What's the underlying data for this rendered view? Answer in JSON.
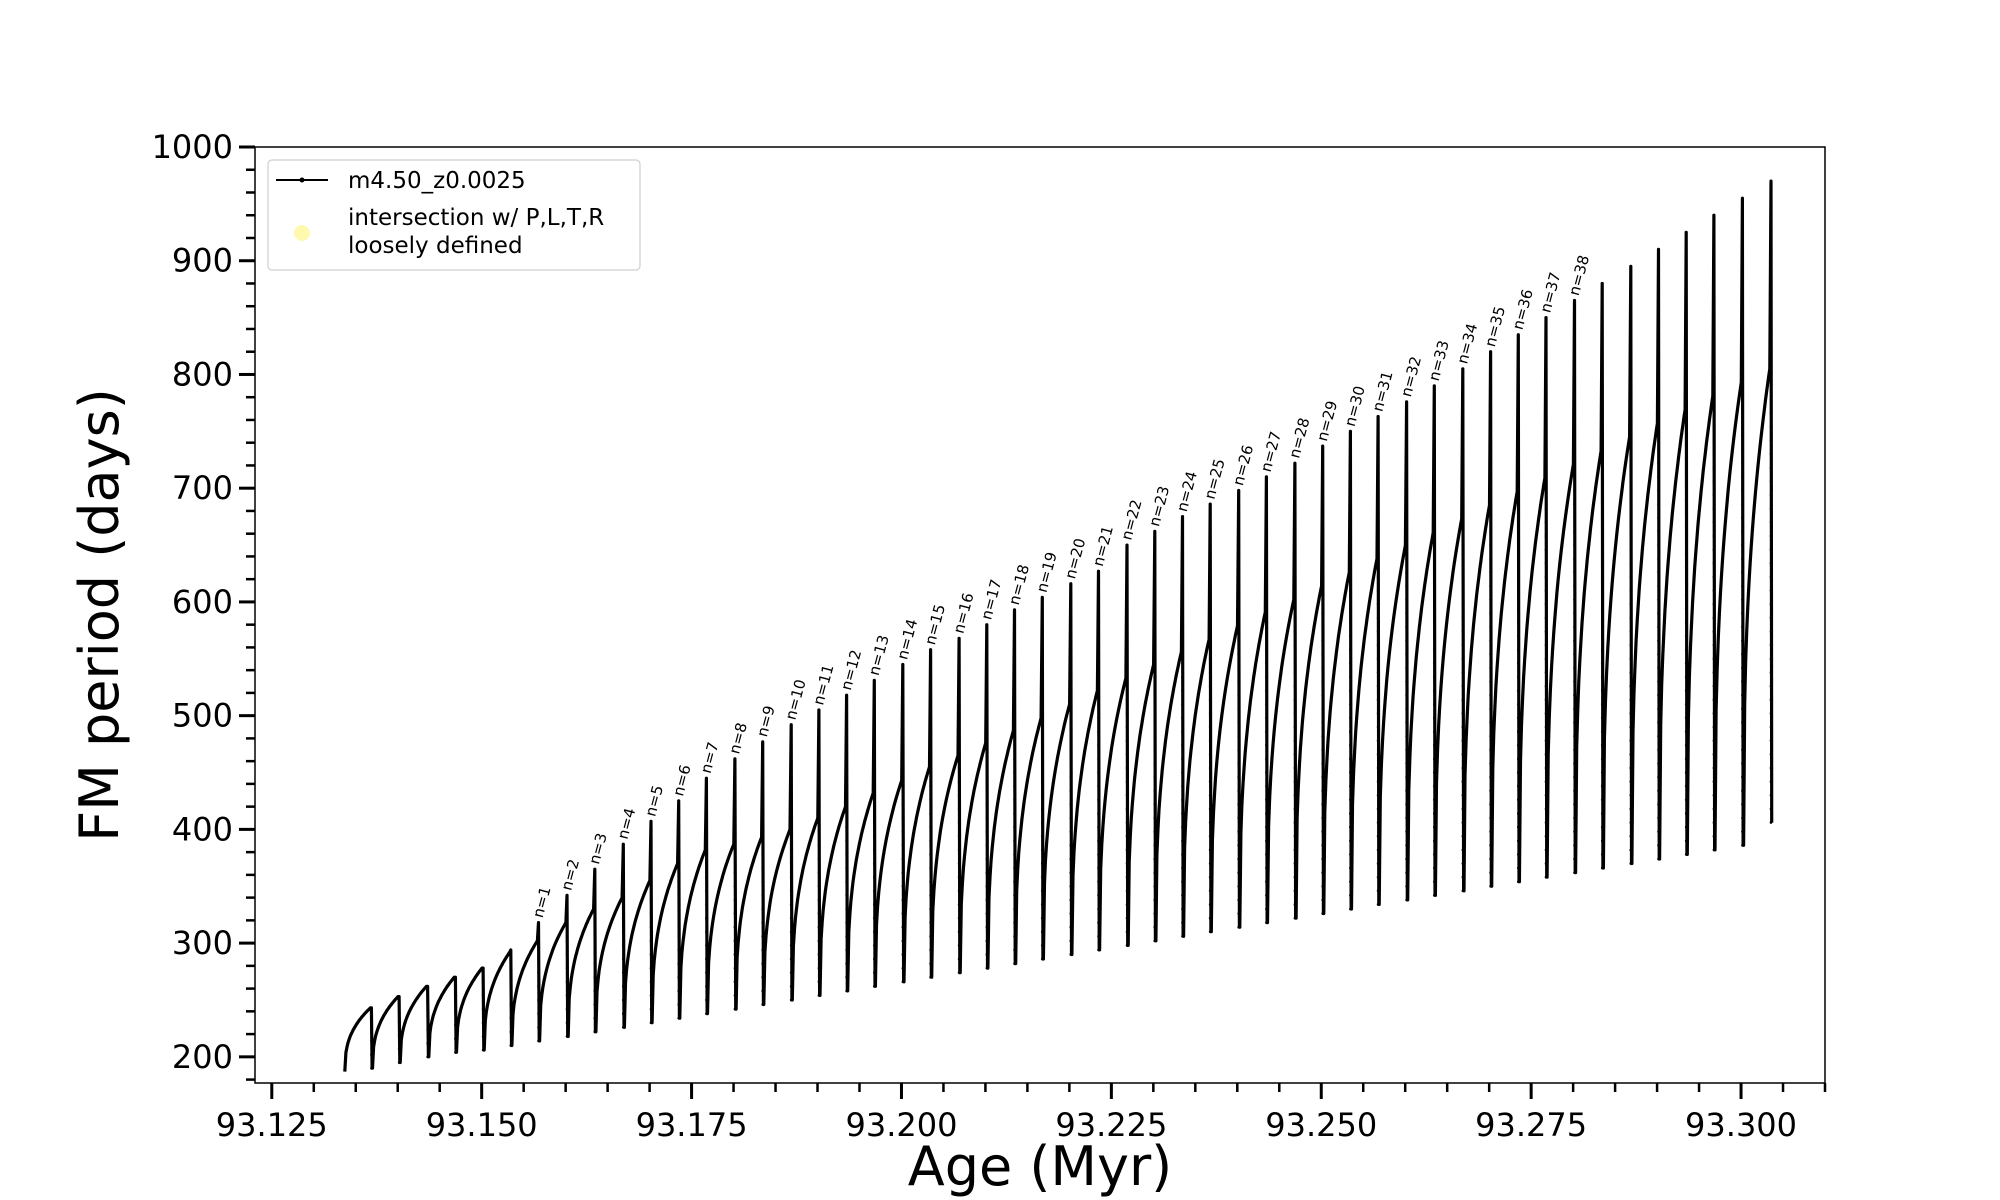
{
  "chart_data": {
    "type": "line",
    "title": "",
    "xlabel": "Age (Myr)",
    "ylabel": "FM period (days)",
    "xlim": [
      93.123,
      93.31
    ],
    "ylim": [
      177,
      1000
    ],
    "x_ticks": [
      "93.125",
      "93.150",
      "93.175",
      "93.200",
      "93.225",
      "93.250",
      "93.275",
      "93.300"
    ],
    "x_tick_values": [
      93.125,
      93.15,
      93.175,
      93.2,
      93.225,
      93.25,
      93.275,
      93.3
    ],
    "y_ticks": [
      "200",
      "300",
      "400",
      "500",
      "600",
      "700",
      "800",
      "900",
      "1000"
    ],
    "y_tick_values": [
      200,
      300,
      400,
      500,
      600,
      700,
      800,
      900,
      1000
    ],
    "grid": false,
    "legend_position": "top-left",
    "legend": [
      {
        "label": "m4.50_z0.0025",
        "marker": "line-dot",
        "color": "#000000"
      },
      {
        "label": "intersection w/ P,L,T,R",
        "label2": "loosely defined",
        "marker": "circle",
        "color": "#fff9b0"
      }
    ],
    "series": [
      {
        "name": "m4.50_z0.0025",
        "color": "#000000",
        "description_points": "sawtooth of pulses; each pulse rises from a trough to a crest, then a near-vertical spike reaches the peak; n-labels sit at the spike tops",
        "pulses": [
          {
            "n": "",
            "x": 93.1337,
            "trough": 187,
            "crest": 243,
            "peak": 210
          },
          {
            "n": "",
            "x": 93.137,
            "trough": 190,
            "crest": 253,
            "peak": 228
          },
          {
            "n": "",
            "x": 93.1403,
            "trough": 195,
            "crest": 262,
            "peak": 240
          },
          {
            "n": "",
            "x": 93.1437,
            "trough": 200,
            "crest": 270,
            "peak": 255
          },
          {
            "n": "",
            "x": 93.147,
            "trough": 204,
            "crest": 278,
            "peak": 270
          },
          {
            "n": "",
            "x": 93.1503,
            "trough": 206,
            "crest": 292,
            "peak": 294
          },
          {
            "n": "n=1",
            "x": 93.1536,
            "trough": 210,
            "crest": 302,
            "peak": 318
          },
          {
            "n": "n=2",
            "x": 93.1569,
            "trough": 214,
            "crest": 318,
            "peak": 342
          },
          {
            "n": "n=3",
            "x": 93.1603,
            "trough": 218,
            "crest": 330,
            "peak": 365
          },
          {
            "n": "n=4",
            "x": 93.1636,
            "trough": 222,
            "crest": 340,
            "peak": 387
          },
          {
            "n": "n=5",
            "x": 93.167,
            "trough": 226,
            "crest": 355,
            "peak": 407
          },
          {
            "n": "n=6",
            "x": 93.1703,
            "trough": 230,
            "crest": 370,
            "peak": 425
          },
          {
            "n": "n=7",
            "x": 93.1736,
            "trough": 234,
            "crest": 382,
            "peak": 445
          },
          {
            "n": "n=8",
            "x": 93.1769,
            "trough": 238,
            "crest": 387,
            "peak": 462
          },
          {
            "n": "n=9",
            "x": 93.1803,
            "trough": 242,
            "crest": 393,
            "peak": 477
          },
          {
            "n": "n=10",
            "x": 93.1836,
            "trough": 246,
            "crest": 400,
            "peak": 492
          },
          {
            "n": "n=11",
            "x": 93.187,
            "trough": 250,
            "crest": 410,
            "peak": 505
          },
          {
            "n": "n=12",
            "x": 93.1903,
            "trough": 254,
            "crest": 420,
            "peak": 518
          },
          {
            "n": "n=13",
            "x": 93.1936,
            "trough": 258,
            "crest": 432,
            "peak": 531
          },
          {
            "n": "n=14",
            "x": 93.1969,
            "trough": 262,
            "crest": 443,
            "peak": 545
          },
          {
            "n": "n=15",
            "x": 93.2003,
            "trough": 266,
            "crest": 455,
            "peak": 558
          },
          {
            "n": "n=16",
            "x": 93.2036,
            "trough": 270,
            "crest": 465,
            "peak": 568
          },
          {
            "n": "n=17",
            "x": 93.207,
            "trough": 274,
            "crest": 476,
            "peak": 580
          },
          {
            "n": "n=18",
            "x": 93.2103,
            "trough": 278,
            "crest": 487,
            "peak": 593
          },
          {
            "n": "n=19",
            "x": 93.2136,
            "trough": 282,
            "crest": 498,
            "peak": 604
          },
          {
            "n": "n=20",
            "x": 93.2169,
            "trough": 286,
            "crest": 510,
            "peak": 616
          },
          {
            "n": "n=21",
            "x": 93.2203,
            "trough": 290,
            "crest": 522,
            "peak": 627
          },
          {
            "n": "n=22",
            "x": 93.2236,
            "trough": 294,
            "crest": 533,
            "peak": 650
          },
          {
            "n": "n=23",
            "x": 93.227,
            "trough": 298,
            "crest": 545,
            "peak": 662
          },
          {
            "n": "n=24",
            "x": 93.2303,
            "trough": 302,
            "crest": 556,
            "peak": 675
          },
          {
            "n": "n=25",
            "x": 93.2336,
            "trough": 306,
            "crest": 567,
            "peak": 686
          },
          {
            "n": "n=26",
            "x": 93.2369,
            "trough": 310,
            "crest": 579,
            "peak": 698
          },
          {
            "n": "n=27",
            "x": 93.2403,
            "trough": 314,
            "crest": 591,
            "peak": 710
          },
          {
            "n": "n=28",
            "x": 93.2436,
            "trough": 318,
            "crest": 602,
            "peak": 722
          },
          {
            "n": "n=29",
            "x": 93.247,
            "trough": 322,
            "crest": 614,
            "peak": 737
          },
          {
            "n": "n=30",
            "x": 93.2503,
            "trough": 326,
            "crest": 626,
            "peak": 750
          },
          {
            "n": "n=31",
            "x": 93.2536,
            "trough": 330,
            "crest": 638,
            "peak": 763
          },
          {
            "n": "n=32",
            "x": 93.2569,
            "trough": 334,
            "crest": 650,
            "peak": 776
          },
          {
            "n": "n=33",
            "x": 93.2603,
            "trough": 338,
            "crest": 661,
            "peak": 790
          },
          {
            "n": "n=34",
            "x": 93.2636,
            "trough": 342,
            "crest": 673,
            "peak": 805
          },
          {
            "n": "n=35",
            "x": 93.267,
            "trough": 346,
            "crest": 685,
            "peak": 820
          },
          {
            "n": "n=36",
            "x": 93.2703,
            "trough": 350,
            "crest": 697,
            "peak": 835
          },
          {
            "n": "n=37",
            "x": 93.2736,
            "trough": 354,
            "crest": 709,
            "peak": 850
          },
          {
            "n": "n=38",
            "x": 93.2769,
            "trough": 358,
            "crest": 721,
            "peak": 865
          },
          {
            "n": "",
            "x": 93.2803,
            "trough": 362,
            "crest": 733,
            "peak": 880
          },
          {
            "n": "",
            "x": 93.2836,
            "trough": 366,
            "crest": 745,
            "peak": 895
          },
          {
            "n": "",
            "x": 93.287,
            "trough": 370,
            "crest": 757,
            "peak": 910
          },
          {
            "n": "",
            "x": 93.2903,
            "trough": 374,
            "crest": 769,
            "peak": 925
          },
          {
            "n": "",
            "x": 93.2936,
            "trough": 378,
            "crest": 781,
            "peak": 940
          },
          {
            "n": "",
            "x": 93.2969,
            "trough": 382,
            "crest": 793,
            "peak": 955
          },
          {
            "n": "",
            "x": 93.3003,
            "trough": 386,
            "crest": 805,
            "peak": 970
          }
        ]
      }
    ]
  }
}
